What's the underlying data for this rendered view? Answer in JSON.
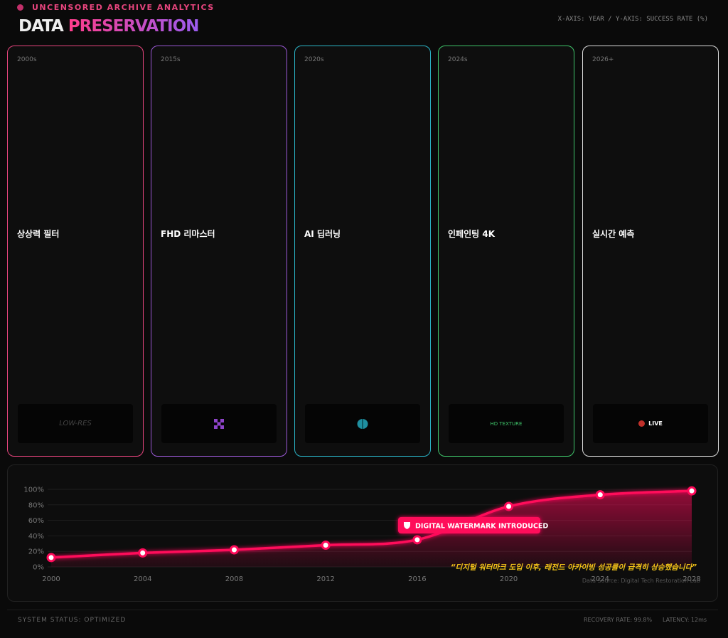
{
  "header": {
    "badge": "UNCENSORED ARCHIVE ANALYTICS",
    "title_a": "DATA",
    "title_b": "PRESERVATION",
    "axis_note": "X-AXIS: YEAR / Y-AXIS: SUCCESS RATE (%)"
  },
  "cards": [
    {
      "era": "2000s",
      "title": "상상력 필터",
      "label": "LOW-RES"
    },
    {
      "era": "2015s",
      "title": "FHD 리마스터"
    },
    {
      "era": "2020s",
      "title": "AI 딥러닝"
    },
    {
      "era": "2024s",
      "title": "인페인팅 4K",
      "label": "HD TEXTURE"
    },
    {
      "era": "2026+",
      "title": "실시간 예측",
      "label": "LIVE"
    }
  ],
  "chart_data": {
    "type": "line",
    "x": [
      2000,
      2004,
      2008,
      2012,
      2016,
      2020,
      2024,
      2028
    ],
    "values": [
      12,
      18,
      22,
      28,
      35,
      78,
      93,
      98
    ],
    "color": "#ff0a5a",
    "xlim": [
      2000,
      2028
    ],
    "xticks": [
      2000,
      2004,
      2008,
      2012,
      2016,
      2020,
      2024,
      2028
    ],
    "ylim": [
      0,
      100
    ],
    "yticks": [
      {
        "value": 0,
        "label": "0%"
      },
      {
        "value": 20,
        "label": "20%"
      },
      {
        "value": 40,
        "label": "40%"
      },
      {
        "value": 60,
        "label": "60%"
      },
      {
        "value": 80,
        "label": "80%"
      },
      {
        "value": 100,
        "label": "100%"
      }
    ],
    "grid": true,
    "annotation": "DIGITAL WATERMARK INTRODUCED",
    "quote": "“디지털 워터마크 도입 이후, 레전드 아카이빙 성공률이 급격히 상승했습니다”",
    "source": "Data Source: Digital Tech Restoration Lab"
  },
  "footer": {
    "status": "SYSTEM STATUS: OPTIMIZED",
    "recovery": "RECOVERY RATE: 99.8%",
    "latency": "LATENCY: 12ms"
  }
}
